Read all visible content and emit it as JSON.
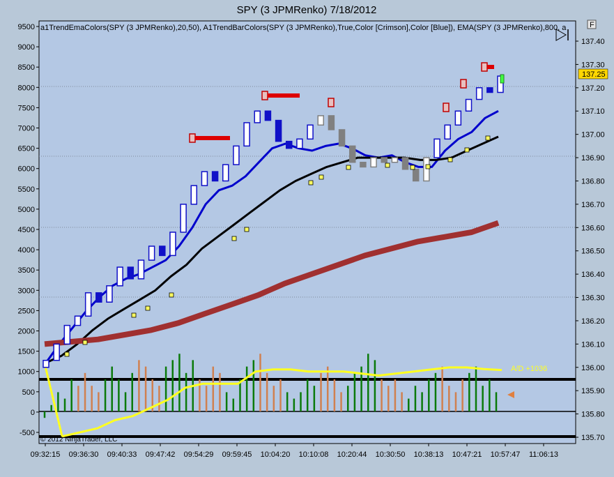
{
  "chart_data": {
    "type": "line",
    "title": "SPY (3 JPMRenko)  7/18/2012",
    "indicator_label": "a1TrendEmaColors(SPY (3 JPMRenko),20,50), A1TrendBarColors(SPY (3 JPMRenko),True,Color [Crimson],Color [Blue]), EMA(SPY (3 JPMRenko),800, a",
    "copyright": "© 2012 NinjaTrader, LLC",
    "panel_button": "F",
    "x_ticks": [
      "09:32:15",
      "09:36:30",
      "09:40:33",
      "09:47:42",
      "09:54:29",
      "09:59:45",
      "10:04:20",
      "10:10:08",
      "10:20:44",
      "10:30:50",
      "10:38:13",
      "10:47:21",
      "10:57:47",
      "11:06:13"
    ],
    "left_axis": {
      "ticks": [
        "9500",
        "9000",
        "8500",
        "8000",
        "7500",
        "7000",
        "6500",
        "6000",
        "5500",
        "5000",
        "4500",
        "4000",
        "3500",
        "3000",
        "2500",
        "2000",
        "1500",
        "1000",
        "500",
        "0",
        "-500"
      ],
      "ylim": [
        -500,
        9500
      ]
    },
    "right_axis": {
      "ticks": [
        "137.40",
        "137.30",
        "137.20",
        "137.10",
        "137.00",
        "136.90",
        "136.80",
        "136.70",
        "136.60",
        "136.50",
        "136.40",
        "136.30",
        "136.20",
        "136.10",
        "136.00",
        "135.90",
        "135.80",
        "135.70"
      ],
      "ylim": [
        135.7,
        137.4
      ]
    },
    "last_price": "137.25",
    "ad_label": "A/D +1036",
    "series": [
      {
        "color": "#0000cc",
        "y": [
          136.02,
          136.1,
          136.17,
          136.24,
          136.3,
          136.35,
          136.38,
          136.4,
          136.43,
          136.46,
          136.52,
          136.6,
          136.7,
          136.76,
          136.78,
          136.82,
          136.88,
          136.94,
          136.96,
          136.94,
          136.93,
          136.95,
          136.96,
          136.94,
          136.91,
          136.9,
          136.91,
          136.88,
          136.86,
          136.86,
          136.93,
          136.98,
          137.01,
          137.07,
          137.1
        ]
      },
      {
        "color": "#000000",
        "y": [
          136.02,
          136.05,
          136.1,
          136.16,
          136.21,
          136.25,
          136.29,
          136.33,
          136.39,
          136.44,
          136.51,
          136.56,
          136.61,
          136.66,
          136.71,
          136.76,
          136.8,
          136.83,
          136.86,
          136.88,
          136.9,
          136.9,
          136.9,
          136.9,
          136.89,
          136.89,
          136.9,
          136.93,
          136.96,
          136.99
        ]
      },
      {
        "color": "#a03030",
        "y": [
          136.1,
          136.11,
          136.12,
          136.14,
          136.16,
          136.19,
          136.23,
          136.27,
          136.31,
          136.36,
          136.4,
          136.44,
          136.48,
          136.51,
          136.54,
          136.56,
          136.58,
          136.62
        ]
      },
      {
        "color": "#ffff20",
        "y": [
          1200,
          -600,
          -500,
          -400,
          -200,
          -100,
          100,
          300,
          600,
          700,
          700,
          700,
          1000,
          1050,
          1050,
          1000,
          1000,
          1000,
          950,
          900,
          950,
          1000,
          1050,
          1100,
          1100,
          1060,
          1036
        ]
      }
    ],
    "renko_close": [
      136.03,
      136.1,
      136.18,
      136.22,
      136.32,
      136.28,
      136.35,
      136.43,
      136.38,
      136.46,
      136.52,
      136.48,
      136.58,
      136.7,
      136.78,
      136.84,
      136.8,
      136.87,
      136.95,
      137.05,
      137.1,
      137.06,
      136.97,
      136.94,
      136.98,
      137.04,
      137.08,
      137.02,
      136.95,
      136.88,
      136.86,
      136.9,
      136.88,
      136.9,
      136.85,
      136.8,
      136.9,
      136.98,
      137.04,
      137.1,
      137.15,
      137.2,
      137.18,
      137.25
    ],
    "ad_histogram": [
      -100,
      100,
      300,
      200,
      500,
      400,
      600,
      400,
      300,
      500,
      700,
      500,
      300,
      600,
      800,
      700,
      500,
      400,
      700,
      800,
      900,
      600,
      800,
      500,
      400,
      700,
      600,
      300,
      200,
      500,
      700,
      800,
      900,
      600,
      400,
      500,
      300,
      200,
      300,
      500,
      400,
      600,
      700,
      500,
      300,
      400,
      600,
      700,
      900,
      800,
      500,
      400,
      500,
      300,
      200,
      400,
      300,
      500,
      600,
      700,
      400,
      300,
      500,
      600,
      700,
      400,
      500,
      300
    ]
  }
}
